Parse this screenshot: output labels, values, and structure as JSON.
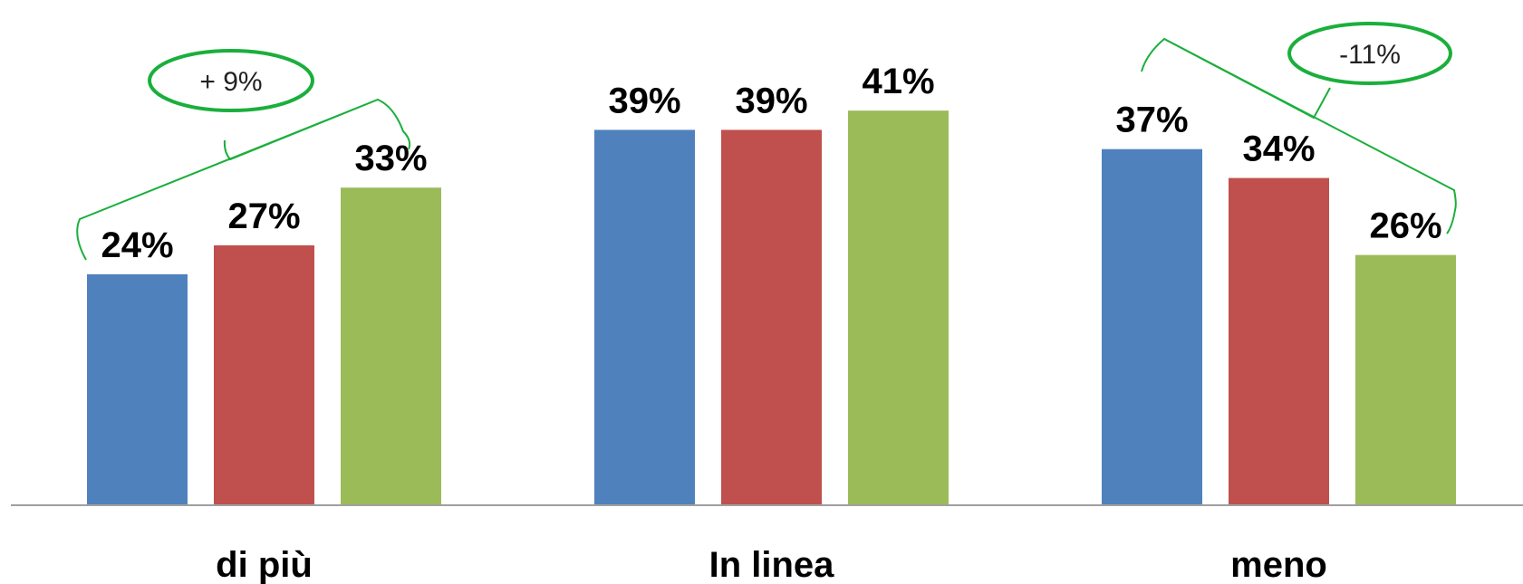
{
  "chart_data": {
    "type": "bar",
    "categories": [
      "di più",
      "In linea",
      "meno"
    ],
    "series": [
      {
        "values": [
          24,
          39,
          37
        ],
        "labels": [
          "24%",
          "39%",
          "37%"
        ],
        "color": "#4f81bd"
      },
      {
        "values": [
          27,
          39,
          34
        ],
        "labels": [
          "27%",
          "39%",
          "34%"
        ],
        "color": "#c0504d"
      },
      {
        "values": [
          33,
          41,
          26
        ],
        "labels": [
          "33%",
          "41%",
          "26%"
        ],
        "color": "#9bbb59"
      }
    ],
    "ylim": [
      0,
      48
    ],
    "grid": false,
    "axis_color": "#a0a0a0",
    "annotations": [
      {
        "category": "di più",
        "text": "+ 9%",
        "from_series": 0,
        "to_series": 2,
        "color": "#1aaf3c"
      },
      {
        "category": "meno",
        "text": "-11%",
        "from_series": 0,
        "to_series": 2,
        "color": "#1aaf3c"
      }
    ]
  }
}
